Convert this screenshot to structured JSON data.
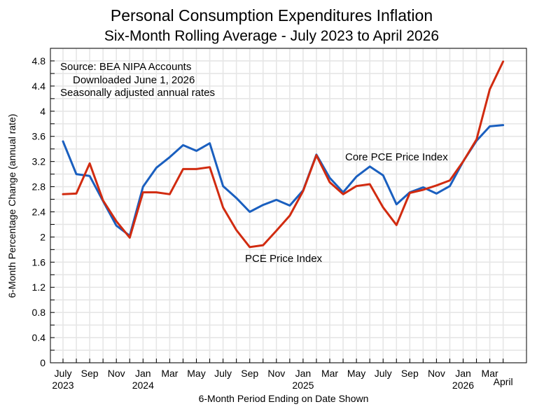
{
  "chart_data": {
    "type": "line",
    "title": "Personal Consumption Expenditures Inflation",
    "subtitle": "Six-Month Rolling Average - July 2023 to April 2026",
    "xlabel": "6-Month Period Ending on Date Shown",
    "ylabel": "6-Month Percentage Change (annual rate)",
    "ylim": [
      0,
      5
    ],
    "y_ticks": [
      0,
      0.4,
      0.8,
      1.2,
      1.6,
      2,
      2.4,
      2.8,
      3.2,
      3.6,
      4,
      4.4,
      4.8
    ],
    "x": [
      "Jul 2023",
      "Aug 2023",
      "Sep 2023",
      "Oct 2023",
      "Nov 2023",
      "Dec 2023",
      "Jan 2024",
      "Feb 2024",
      "Mar 2024",
      "Apr 2024",
      "May 2024",
      "Jun 2024",
      "Jul 2024",
      "Aug 2024",
      "Sep 2024",
      "Oct 2024",
      "Nov 2024",
      "Dec 2024",
      "Jan 2025",
      "Feb 2025",
      "Mar 2025",
      "Apr 2025",
      "May 2025",
      "Jun 2025",
      "Jul 2025",
      "Aug 2025",
      "Sep 2025",
      "Oct 2025",
      "Nov 2025",
      "Dec 2025",
      "Jan 2026",
      "Feb 2026",
      "Mar 2026",
      "Apr 2026"
    ],
    "x_tick_labels": [
      {
        "index": 0,
        "label": "July",
        "year": "2023"
      },
      {
        "index": 2,
        "label": "Sep",
        "year": ""
      },
      {
        "index": 4,
        "label": "Nov",
        "year": ""
      },
      {
        "index": 6,
        "label": "Jan",
        "year": "2024"
      },
      {
        "index": 8,
        "label": "Mar",
        "year": ""
      },
      {
        "index": 10,
        "label": "May",
        "year": ""
      },
      {
        "index": 12,
        "label": "July",
        "year": ""
      },
      {
        "index": 14,
        "label": "Sep",
        "year": ""
      },
      {
        "index": 16,
        "label": "Nov",
        "year": ""
      },
      {
        "index": 18,
        "label": "Jan",
        "year": "2025"
      },
      {
        "index": 20,
        "label": "Mar",
        "year": ""
      },
      {
        "index": 22,
        "label": "May",
        "year": ""
      },
      {
        "index": 24,
        "label": "July",
        "year": ""
      },
      {
        "index": 26,
        "label": "Sep",
        "year": ""
      },
      {
        "index": 28,
        "label": "Nov",
        "year": ""
      },
      {
        "index": 30,
        "label": "Jan",
        "year": "2026"
      },
      {
        "index": 32,
        "label": "Mar",
        "year": ""
      },
      {
        "index": 33,
        "label": "",
        "year": "April"
      }
    ],
    "grid": true,
    "series": [
      {
        "name": "Core PCE Price Index",
        "color": "#1a5fbf",
        "values": [
          3.52,
          3.0,
          2.97,
          2.57,
          2.18,
          2.02,
          2.8,
          3.1,
          3.27,
          3.46,
          3.37,
          3.49,
          2.81,
          2.62,
          2.4,
          2.51,
          2.59,
          2.5,
          2.74,
          3.31,
          2.94,
          2.71,
          2.96,
          3.12,
          2.98,
          2.52,
          2.71,
          2.79,
          2.69,
          2.81,
          3.2,
          3.53,
          3.76,
          3.78
        ]
      },
      {
        "name": "PCE Price Index",
        "color": "#d12b10",
        "values": [
          2.68,
          2.69,
          3.17,
          2.58,
          2.25,
          1.99,
          2.71,
          2.71,
          2.68,
          3.08,
          3.08,
          3.11,
          2.47,
          2.11,
          1.84,
          1.87,
          2.1,
          2.34,
          2.73,
          3.3,
          2.87,
          2.68,
          2.81,
          2.84,
          2.47,
          2.19,
          2.7,
          2.75,
          2.82,
          2.9,
          3.2,
          3.55,
          4.35,
          4.79
        ]
      }
    ],
    "annotations": {
      "source_line1": "Source:  BEA NIPA Accounts",
      "source_line2": "Downloaded June 1, 2026",
      "source_line3": "Seasonally adjusted annual rates",
      "core_label": "Core PCE Price Index",
      "pce_label": "PCE Price Index"
    }
  }
}
